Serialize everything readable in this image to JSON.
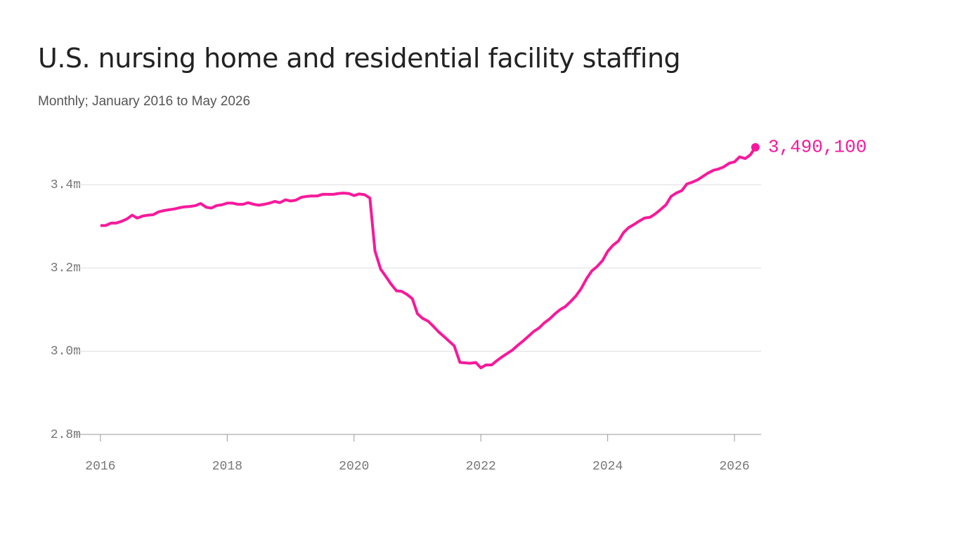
{
  "chart_data": {
    "type": "line",
    "title": "U.S. nursing home and residential facility staffing",
    "subtitle": "Monthly; January 2016 to May 2026",
    "color": "#f7199b",
    "grid": true,
    "x": [
      2016,
      2016.08,
      2016.17,
      2016.25,
      2016.33,
      2016.42,
      2016.5,
      2016.58,
      2016.67,
      2016.75,
      2016.83,
      2016.92,
      2017,
      2017.08,
      2017.17,
      2017.25,
      2017.33,
      2017.42,
      2017.5,
      2017.58,
      2017.67,
      2017.75,
      2017.83,
      2017.92,
      2018,
      2018.08,
      2018.17,
      2018.25,
      2018.33,
      2018.42,
      2018.5,
      2018.58,
      2018.67,
      2018.75,
      2018.83,
      2018.92,
      2019,
      2019.08,
      2019.17,
      2019.25,
      2019.33,
      2019.42,
      2019.5,
      2019.58,
      2019.67,
      2019.75,
      2019.83,
      2019.92,
      2020,
      2020.08,
      2020.17,
      2020.25,
      2020.33,
      2020.42,
      2020.5,
      2020.58,
      2020.67,
      2020.75,
      2020.83,
      2020.92,
      2021,
      2021.08,
      2021.17,
      2021.25,
      2021.33,
      2021.42,
      2021.5,
      2021.58,
      2021.67,
      2021.75,
      2021.83,
      2021.92,
      2022,
      2022.08,
      2022.17,
      2022.25,
      2022.33,
      2022.42,
      2022.5,
      2022.58,
      2022.67,
      2022.75,
      2022.83,
      2022.92,
      2023,
      2023.08,
      2023.17,
      2023.25,
      2023.33,
      2023.42,
      2023.5,
      2023.58,
      2023.67,
      2023.75,
      2023.83,
      2023.92,
      2024,
      2024.08,
      2024.17,
      2024.25,
      2024.33,
      2024.42,
      2024.5,
      2024.58,
      2024.67,
      2024.75,
      2024.83,
      2024.92,
      2025,
      2025.08,
      2025.17,
      2025.25,
      2025.33,
      2025.42,
      2025.5,
      2025.58,
      2025.67,
      2025.75,
      2025.83,
      2025.92,
      2026,
      2026.08,
      2026.17,
      2026.25,
      2026.33
    ],
    "values": [
      3.302,
      3.302,
      3.308,
      3.308,
      3.312,
      3.318,
      3.327,
      3.32,
      3.325,
      3.327,
      3.328,
      3.335,
      3.338,
      3.34,
      3.342,
      3.345,
      3.347,
      3.348,
      3.35,
      3.355,
      3.346,
      3.344,
      3.35,
      3.352,
      3.356,
      3.356,
      3.353,
      3.353,
      3.357,
      3.353,
      3.351,
      3.353,
      3.356,
      3.36,
      3.357,
      3.364,
      3.361,
      3.363,
      3.37,
      3.372,
      3.373,
      3.373,
      3.377,
      3.377,
      3.377,
      3.379,
      3.38,
      3.379,
      3.374,
      3.378,
      3.376,
      3.368,
      3.241,
      3.197,
      3.18,
      3.162,
      3.145,
      3.144,
      3.137,
      3.126,
      3.09,
      3.079,
      3.072,
      3.06,
      3.047,
      3.035,
      3.024,
      3.013,
      2.973,
      2.972,
      2.971,
      2.973,
      2.96,
      2.967,
      2.967,
      2.977,
      2.986,
      2.995,
      3.003,
      3.014,
      3.025,
      3.036,
      3.047,
      3.056,
      3.068,
      3.077,
      3.09,
      3.1,
      3.107,
      3.12,
      3.133,
      3.15,
      3.175,
      3.193,
      3.203,
      3.218,
      3.24,
      3.254,
      3.265,
      3.285,
      3.297,
      3.305,
      3.313,
      3.32,
      3.322,
      3.33,
      3.34,
      3.352,
      3.372,
      3.38,
      3.386,
      3.402,
      3.406,
      3.412,
      3.42,
      3.428,
      3.435,
      3.438,
      3.443,
      3.452,
      3.455,
      3.467,
      3.463,
      3.472,
      3.4901
    ],
    "value_labels": [
      null,
      null,
      null,
      null,
      null,
      null,
      null,
      null,
      null,
      null,
      null,
      null,
      null,
      null,
      null,
      null,
      null,
      null,
      null,
      null,
      null,
      null,
      null,
      null,
      null,
      null,
      null,
      null,
      null,
      null,
      null,
      null,
      null,
      null,
      null,
      null,
      null,
      null,
      null,
      null,
      null,
      null,
      null,
      null,
      null,
      null,
      null,
      null,
      null,
      null,
      null,
      null,
      null,
      null,
      null,
      null,
      null,
      null,
      null,
      null,
      null,
      null,
      null,
      null,
      null,
      null,
      null,
      null,
      null,
      null,
      null,
      null,
      null,
      null,
      null,
      null,
      null,
      null,
      null,
      null,
      null,
      null,
      null,
      null,
      null,
      null,
      null,
      null,
      null,
      null,
      null,
      null,
      null,
      null,
      null,
      null,
      null,
      null,
      null,
      null,
      null,
      null,
      null,
      null,
      null,
      null,
      null,
      null,
      null,
      null,
      null,
      null,
      null,
      null,
      null,
      null,
      null,
      null,
      null,
      null,
      null,
      null,
      null,
      null,
      "3,490,100"
    ],
    "xlim": [
      2015.58,
      2026.42
    ],
    "xticks": [
      2016,
      2018,
      2020,
      2022,
      2024,
      2026
    ],
    "ylim": [
      2.8,
      3.5
    ],
    "yticks": [
      {
        "value": 2.8,
        "label": "2.8m"
      },
      {
        "value": 3.0,
        "label": "3.0m"
      },
      {
        "value": 3.2,
        "label": "3.2m"
      },
      {
        "value": 3.4,
        "label": "3.4m"
      }
    ]
  }
}
